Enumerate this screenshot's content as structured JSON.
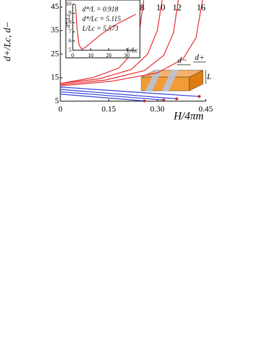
{
  "chart_data": [
    {
      "type": "line",
      "xlabel": "H/4πm",
      "ylabel": "d+/Lc, d−",
      "xlim": [
        0,
        0.45
      ],
      "ylim": [
        5,
        48
      ],
      "xticks": [
        0,
        0.15,
        {
          "value": 0.3,
          "label": "0.30"
        },
        0.45
      ],
      "yticks": [
        5,
        15,
        25,
        35,
        45
      ],
      "series": [
        {
          "name": "8",
          "color": "#e8232a",
          "x": [
            0,
            0.1,
            0.18,
            0.22,
            0.245,
            0.258
          ],
          "values": [
            12.5,
            15,
            19,
            25,
            35,
            48
          ]
        },
        {
          "name": "10",
          "color": "#e8232a",
          "x": [
            0,
            0.12,
            0.22,
            0.27,
            0.3,
            0.315
          ],
          "values": [
            12.5,
            14.5,
            18.5,
            25,
            35,
            48
          ]
        },
        {
          "name": "12",
          "color": "#e8232a",
          "x": [
            0,
            0.14,
            0.26,
            0.32,
            0.35,
            0.365
          ],
          "values": [
            12,
            14,
            18,
            24.5,
            34,
            48
          ]
        },
        {
          "name": "16",
          "color": "#e8232a",
          "x": [
            0,
            0.16,
            0.3,
            0.38,
            0.42,
            0.44
          ],
          "values": [
            11.5,
            13.5,
            17,
            23,
            32,
            48
          ]
        },
        {
          "color": "#2b3bd6",
          "x": [
            0,
            0.26
          ],
          "values": [
            8,
            5.1
          ]
        },
        {
          "color": "#2b3bd6",
          "x": [
            0,
            0.32
          ],
          "values": [
            9,
            5.5
          ]
        },
        {
          "color": "#2b3bd6",
          "x": [
            0,
            0.36
          ],
          "values": [
            10,
            6
          ]
        },
        {
          "color": "#2b3bd6",
          "x": [
            0,
            0.43
          ],
          "values": [
            11,
            7
          ]
        }
      ],
      "illustration_labels": [
        "d−",
        "d+",
        "L"
      ]
    },
    {
      "type": "line",
      "xlabel": "L/Lc",
      "ylabel": "d*/Lc",
      "xlim": [
        0,
        35
      ],
      "ylim": [
        5,
        10
      ],
      "xticks": [
        0,
        10,
        20,
        30
      ],
      "yticks": [
        5,
        6,
        7,
        8,
        9,
        10
      ],
      "annotations": [
        "d*/L = 0.918",
        "d*/Lc = 5.115",
        "L/Lc = 5.573"
      ],
      "series": [
        {
          "color": "#e8232a",
          "x": [
            1.5,
            2.5,
            3.5,
            5,
            7,
            10,
            15,
            20,
            25,
            30,
            35
          ],
          "values": [
            10,
            7.2,
            5.6,
            5.1,
            5.3,
            5.8,
            6.6,
            7.3,
            7.9,
            8.4,
            8.9
          ]
        }
      ]
    }
  ]
}
